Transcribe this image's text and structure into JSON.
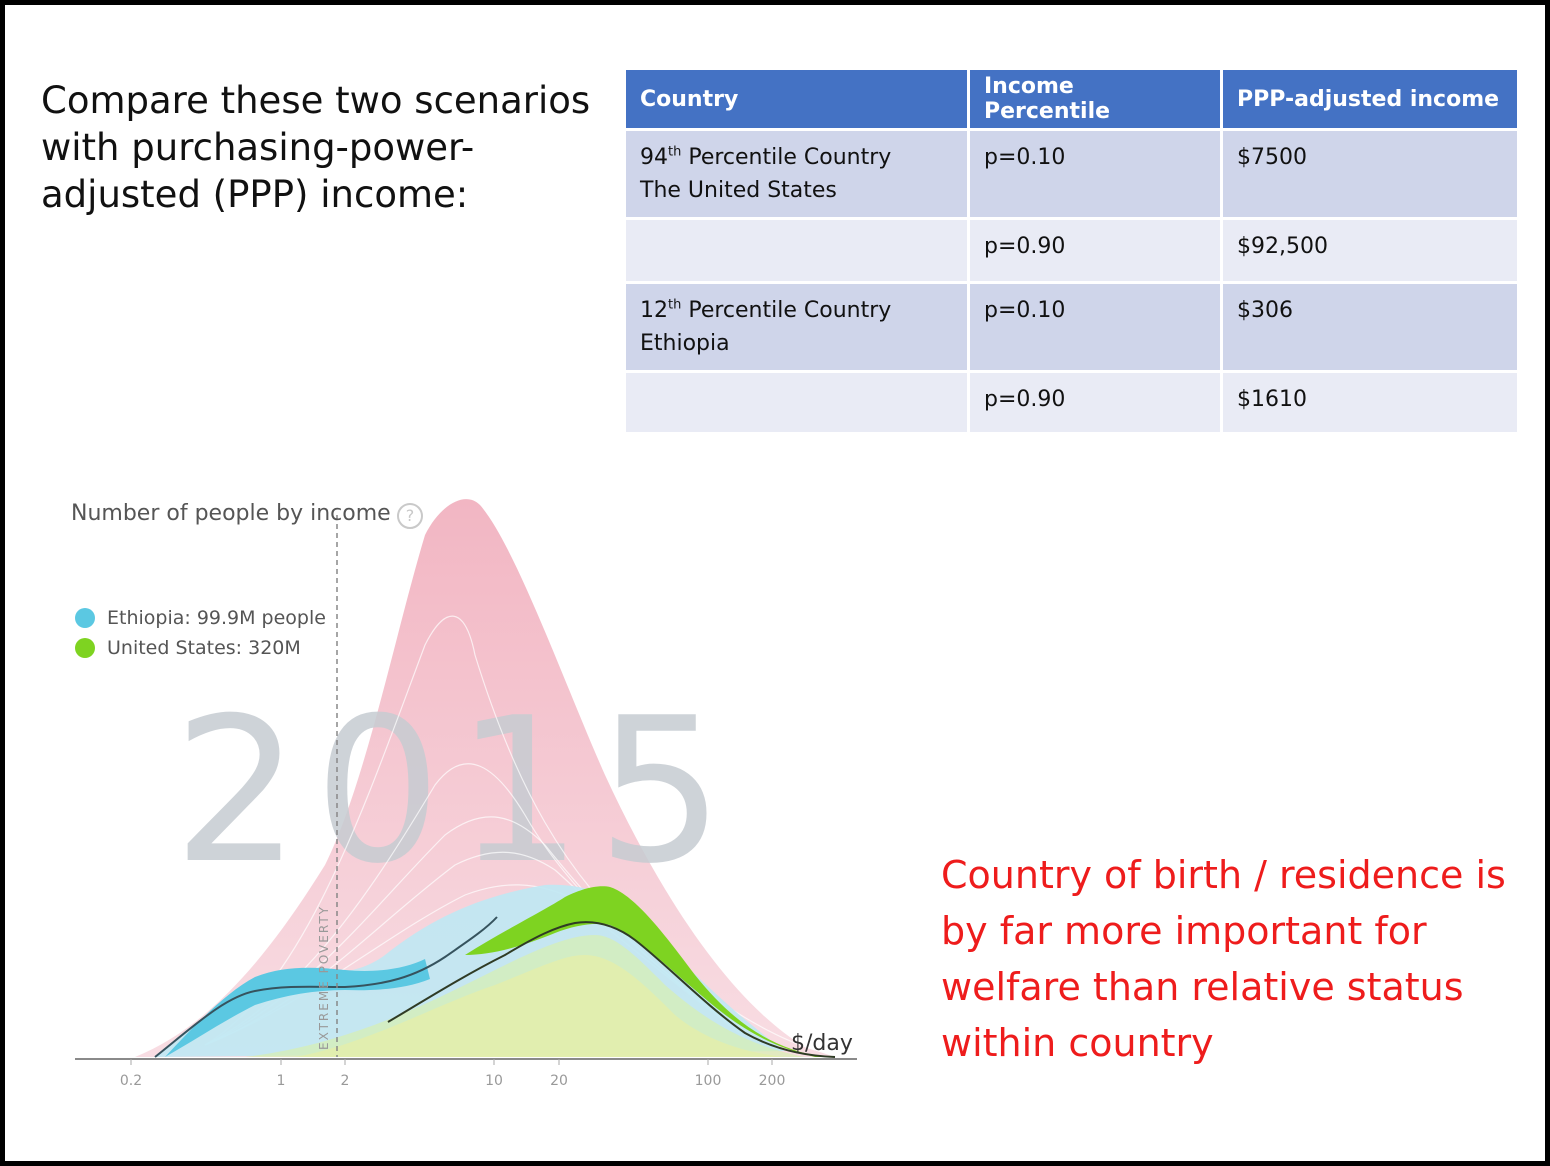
{
  "slide": {
    "heading": "Compare these two scenarios with purchasing-power-adjusted (PPP) income:",
    "conclusion": "Country of birth / residence is by far more important for welfare than relative status within country"
  },
  "table": {
    "headers": [
      "Country",
      "Income Percentile",
      "PPP-adjusted income"
    ],
    "rows": [
      {
        "rank": "94",
        "rank_suffix": "th",
        "country_line1": " Percentile Country",
        "country_line2": "The United States",
        "percentile": "p=0.10",
        "income": "$7500"
      },
      {
        "percentile": "p=0.90",
        "income": "$92,500"
      },
      {
        "rank": "12",
        "rank_suffix": "th",
        "country_line1": " Percentile Country",
        "country_line2": "Ethiopia",
        "percentile": "p=0.10",
        "income": "$306"
      },
      {
        "percentile": "p=0.90",
        "income": "$1610"
      }
    ]
  },
  "chart": {
    "title": "Number of people by income",
    "help_icon": "?",
    "year": "2015",
    "poverty_label": "EXTREME POVERTY",
    "unit_label": "$/day",
    "legend": [
      {
        "label": "Ethiopia: 99.9M people",
        "color": "#5bc8e2"
      },
      {
        "label": "United States: 320M",
        "color": "#7ed321"
      }
    ],
    "colors": {
      "world": "#f3c2cc",
      "ethiopia": "#5bc8e2",
      "us": "#7ed321",
      "asia_light": "#bfe8f3",
      "yellow": "#fbeaa5",
      "year_text": "#c5cbd1"
    }
  },
  "chart_data": {
    "type": "area",
    "x_scale": "log",
    "x_ticks": [
      "0.2",
      "1",
      "2",
      "10",
      "20",
      "100",
      "200"
    ],
    "poverty_line": 1.9,
    "series": [
      {
        "name": "Ethiopia: 99.9M people",
        "x": [
          0.3,
          0.5,
          1,
          2,
          5
        ],
        "y": [
          0.02,
          0.12,
          0.14,
          0.13,
          0.2
        ]
      },
      {
        "name": "United States: 320M",
        "x": [
          3,
          10,
          20,
          30,
          60,
          100,
          200
        ],
        "y": [
          0.05,
          0.2,
          0.28,
          0.29,
          0.19,
          0.07,
          0.01
        ]
      }
    ]
  }
}
